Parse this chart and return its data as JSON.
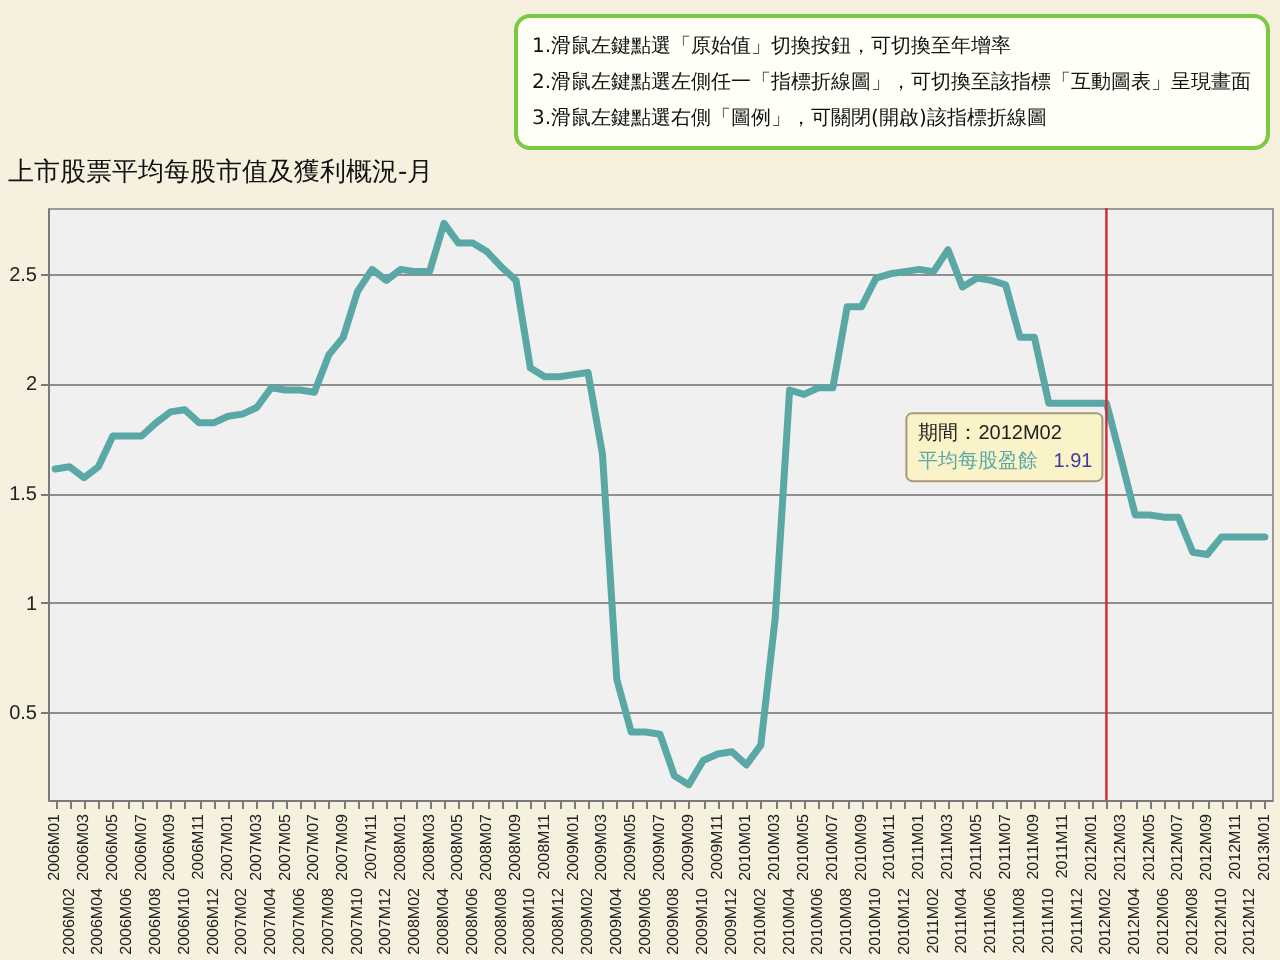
{
  "chart_data": {
    "type": "line",
    "title": "上市股票平均每股市值及獲利概況-月",
    "annotations": [
      "1.滑鼠左鍵點選「原始值」切換按鈕，可切換至年增率",
      "2.滑鼠左鍵點選左側任一「指標折線圖」，可切換至該指標「互動圖表」呈現畫面",
      "3.滑鼠左鍵點選右側「圖例」，可關閉(開啟)該指標折線圖",
      {
        "text": "期間：2012M02",
        "x": "2012M02",
        "y": 1.91
      }
    ],
    "categories": [
      "2006M01",
      "2006M02",
      "2006M03",
      "2006M04",
      "2006M05",
      "2006M06",
      "2006M07",
      "2006M08",
      "2006M09",
      "2006M10",
      "2006M11",
      "2006M12",
      "2007M01",
      "2007M02",
      "2007M03",
      "2007M04",
      "2007M05",
      "2007M06",
      "2007M07",
      "2007M08",
      "2007M09",
      "2007M10",
      "2007M11",
      "2007M12",
      "2008M01",
      "2008M02",
      "2008M03",
      "2008M04",
      "2008M05",
      "2008M06",
      "2008M07",
      "2008M08",
      "2008M09",
      "2008M10",
      "2008M11",
      "2008M12",
      "2009M01",
      "2009M02",
      "2009M03",
      "2009M04",
      "2009M05",
      "2009M06",
      "2009M07",
      "2009M08",
      "2009M09",
      "2009M10",
      "2009M11",
      "2009M12",
      "2010M01",
      "2010M02",
      "2010M03",
      "2010M04",
      "2010M05",
      "2010M06",
      "2010M07",
      "2010M08",
      "2010M09",
      "2010M10",
      "2010M11",
      "2010M12",
      "2011M01",
      "2011M02",
      "2011M03",
      "2011M04",
      "2011M05",
      "2011M06",
      "2011M07",
      "2011M08",
      "2011M09",
      "2011M10",
      "2011M11",
      "2011M12",
      "2012M01",
      "2012M02",
      "2012M03",
      "2012M04",
      "2012M05",
      "2012M06",
      "2012M07",
      "2012M08",
      "2012M09",
      "2012M10",
      "2012M11",
      "2012M12",
      "2013M01"
    ],
    "series": [
      {
        "name": "平均每股盈餘",
        "color": "#5aa8a5",
        "values": [
          1.61,
          1.62,
          1.57,
          1.62,
          1.76,
          1.76,
          1.76,
          1.82,
          1.87,
          1.88,
          1.82,
          1.82,
          1.85,
          1.86,
          1.89,
          1.98,
          1.97,
          1.97,
          1.96,
          2.13,
          2.21,
          2.42,
          2.52,
          2.47,
          2.52,
          2.51,
          2.51,
          2.73,
          2.64,
          2.64,
          2.6,
          2.53,
          2.47,
          2.07,
          2.03,
          2.03,
          2.04,
          2.05,
          1.68,
          0.65,
          0.41,
          0.41,
          0.4,
          0.21,
          0.17,
          0.28,
          0.31,
          0.32,
          0.26,
          0.35,
          0.93,
          1.97,
          1.95,
          1.98,
          1.98,
          2.35,
          2.35,
          2.48,
          2.5,
          2.51,
          2.52,
          2.51,
          2.61,
          2.44,
          2.48,
          2.47,
          2.45,
          2.21,
          2.21,
          1.91,
          1.91,
          1.91,
          1.91,
          1.91,
          1.66,
          1.4,
          1.4,
          1.39,
          1.39,
          1.23,
          1.22,
          1.3,
          1.3,
          1.3,
          1.3
        ],
        "value_labels": [
          null,
          null,
          null,
          null,
          null,
          null,
          null,
          null,
          null,
          null,
          null,
          null,
          null,
          null,
          null,
          null,
          null,
          null,
          null,
          null,
          null,
          null,
          null,
          null,
          null,
          null,
          null,
          null,
          null,
          null,
          null,
          null,
          null,
          null,
          null,
          null,
          null,
          null,
          null,
          null,
          null,
          null,
          null,
          null,
          null,
          null,
          null,
          null,
          null,
          null,
          null,
          null,
          null,
          null,
          null,
          null,
          null,
          null,
          null,
          null,
          null,
          null,
          null,
          null,
          null,
          null,
          null,
          null,
          null,
          null,
          null,
          null,
          null,
          "1.91",
          null,
          null,
          null,
          null,
          null,
          null,
          null,
          null,
          null,
          null,
          null
        ]
      }
    ],
    "ylim": [
      0.1,
      2.8
    ],
    "yticks": [
      0.5,
      1,
      1.5,
      2,
      2.5
    ],
    "grid": "y",
    "ref_lines": [
      {
        "axis": "x",
        "value": "2012M02",
        "color": "#cc2b2b"
      }
    ]
  }
}
